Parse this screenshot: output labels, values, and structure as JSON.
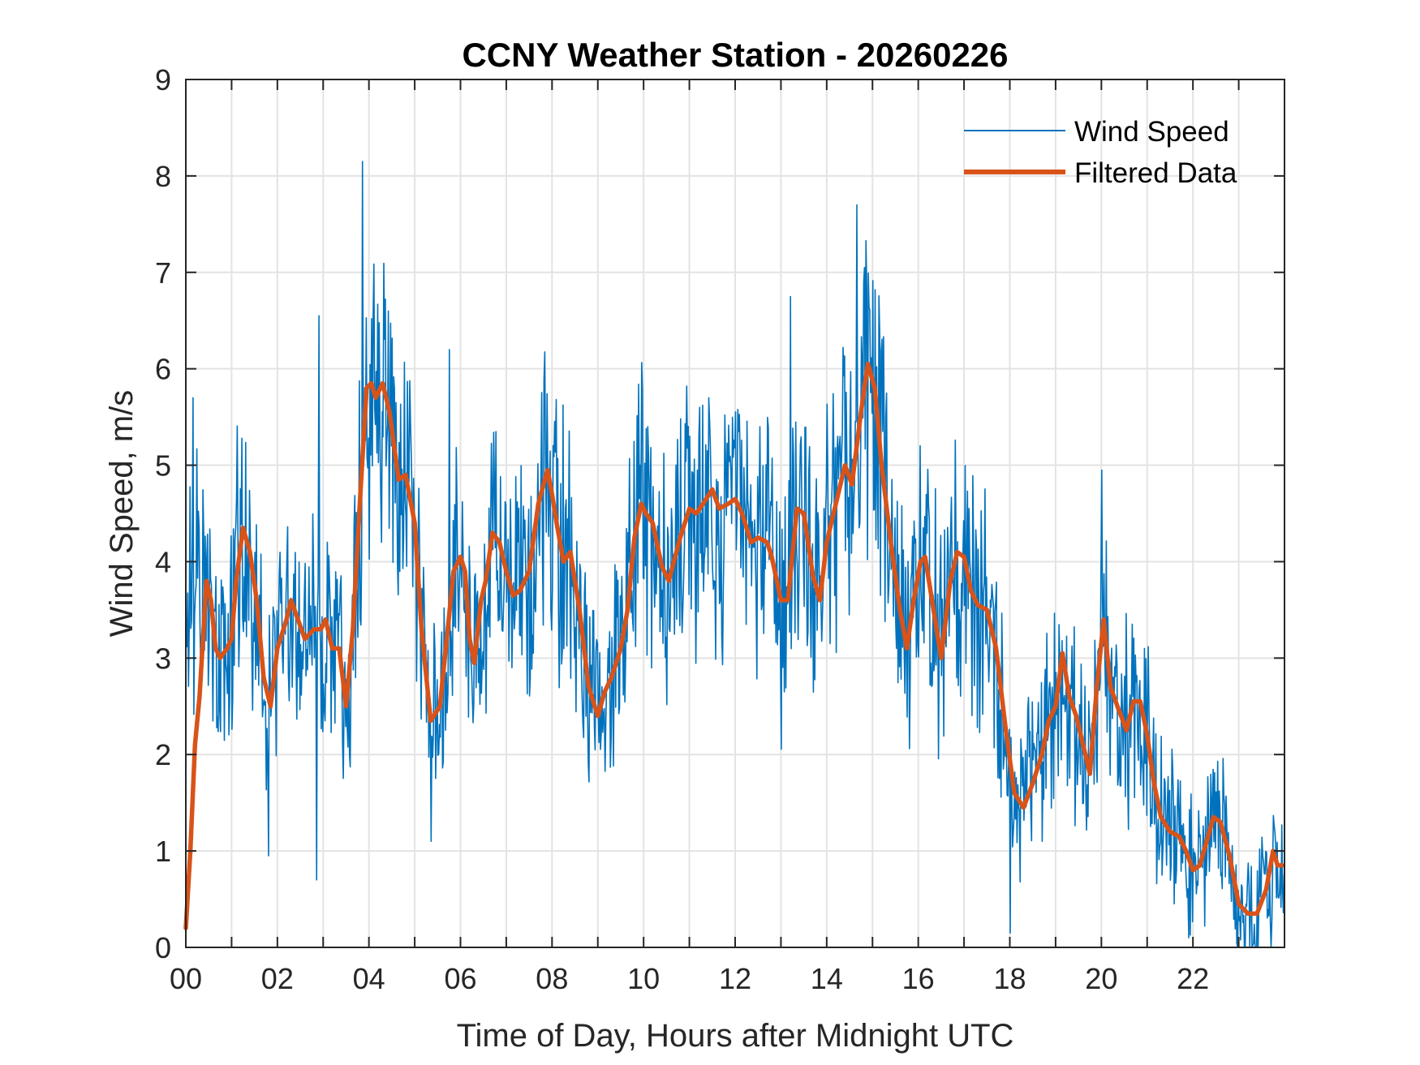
{
  "chart_data": {
    "type": "line",
    "title": "CCNY Weather Station - 20260226",
    "xlabel": "Time of Day, Hours after Midnight UTC",
    "ylabel": "Wind Speed, m/s",
    "xlim": [
      0,
      24
    ],
    "ylim": [
      0,
      9
    ],
    "grid": true,
    "x_ticks": [
      0,
      2,
      4,
      6,
      8,
      10,
      12,
      14,
      16,
      18,
      20,
      22
    ],
    "x_tick_labels": [
      "00",
      "02",
      "04",
      "06",
      "08",
      "10",
      "12",
      "14",
      "16",
      "18",
      "20",
      "22"
    ],
    "x_minor_grid_step_hours": 1,
    "y_ticks": [
      0,
      1,
      2,
      3,
      4,
      5,
      6,
      7,
      8,
      9
    ],
    "y_tick_labels": [
      "0",
      "1",
      "2",
      "3",
      "4",
      "5",
      "6",
      "7",
      "8",
      "9"
    ],
    "legend": {
      "position": "top-right",
      "entries": [
        "Wind Speed",
        "Filtered Data"
      ]
    },
    "colors": {
      "wind_speed": "#0072BD",
      "filtered": "#D95319",
      "grid": "#e3e3e3",
      "axis": "#262626"
    },
    "series": [
      {
        "name": "Wind Speed",
        "style": "thin-line",
        "note": "raw high-frequency samples (~1-min); envelope approximated around filtered curve",
        "notable_peaks": [
          {
            "x": 3.85,
            "y": 8.15
          },
          {
            "x": 14.65,
            "y": 7.7
          },
          {
            "x": 13.2,
            "y": 6.75
          },
          {
            "x": 2.9,
            "y": 6.55
          },
          {
            "x": 5.75,
            "y": 6.2
          },
          {
            "x": 0.15,
            "y": 5.7
          },
          {
            "x": 20.0,
            "y": 4.95
          }
        ],
        "notable_troughs": [
          {
            "x": 2.85,
            "y": 0.7
          },
          {
            "x": 1.8,
            "y": 0.95
          },
          {
            "x": 5.35,
            "y": 1.1
          },
          {
            "x": 18.0,
            "y": 0.15
          },
          {
            "x": 21.9,
            "y": 0.1
          },
          {
            "x": 23.7,
            "y": 0.0
          }
        ]
      },
      {
        "name": "Filtered Data",
        "style": "thick-line",
        "x": [
          0.0,
          0.1,
          0.2,
          0.3,
          0.45,
          0.55,
          0.65,
          0.75,
          0.9,
          1.0,
          1.1,
          1.25,
          1.4,
          1.55,
          1.7,
          1.85,
          2.0,
          2.2,
          2.3,
          2.45,
          2.6,
          2.8,
          2.95,
          3.05,
          3.2,
          3.35,
          3.5,
          3.65,
          3.8,
          3.95,
          4.05,
          4.15,
          4.3,
          4.45,
          4.65,
          4.8,
          5.0,
          5.15,
          5.35,
          5.55,
          5.7,
          5.85,
          6.0,
          6.1,
          6.2,
          6.3,
          6.45,
          6.55,
          6.7,
          6.85,
          7.0,
          7.15,
          7.3,
          7.5,
          7.7,
          7.9,
          8.0,
          8.1,
          8.25,
          8.4,
          8.6,
          8.8,
          9.0,
          9.15,
          9.3,
          9.5,
          9.65,
          9.8,
          9.95,
          10.05,
          10.2,
          10.4,
          10.55,
          10.8,
          11.0,
          11.15,
          11.3,
          11.5,
          11.65,
          11.85,
          12.0,
          12.15,
          12.35,
          12.5,
          12.7,
          12.8,
          13.0,
          13.15,
          13.35,
          13.5,
          13.7,
          13.85,
          14.0,
          14.2,
          14.4,
          14.55,
          14.75,
          14.9,
          15.05,
          15.2,
          15.4,
          15.6,
          15.75,
          15.9,
          16.05,
          16.15,
          16.3,
          16.5,
          16.7,
          16.85,
          17.0,
          17.15,
          17.3,
          17.5,
          17.7,
          17.9,
          18.1,
          18.3,
          18.5,
          18.7,
          18.85,
          19.0,
          19.15,
          19.3,
          19.45,
          19.6,
          19.75,
          19.9,
          20.05,
          20.2,
          20.35,
          20.55,
          20.7,
          20.85,
          21.0,
          21.15,
          21.3,
          21.5,
          21.7,
          21.85,
          22.0,
          22.15,
          22.3,
          22.45,
          22.6,
          22.8,
          23.0,
          23.2,
          23.4,
          23.6,
          23.75,
          23.85,
          23.95
        ],
        "y": [
          0.2,
          1.0,
          2.1,
          2.6,
          3.8,
          3.6,
          3.1,
          3.0,
          3.1,
          3.2,
          3.8,
          4.35,
          4.1,
          3.6,
          2.8,
          2.5,
          3.1,
          3.4,
          3.6,
          3.4,
          3.2,
          3.3,
          3.3,
          3.4,
          3.1,
          3.1,
          2.5,
          3.3,
          4.6,
          5.8,
          5.85,
          5.7,
          5.85,
          5.55,
          4.85,
          4.9,
          4.4,
          3.3,
          2.35,
          2.5,
          3.2,
          3.9,
          4.05,
          3.9,
          3.2,
          2.95,
          3.6,
          3.8,
          4.3,
          4.2,
          3.9,
          3.65,
          3.7,
          3.9,
          4.6,
          4.95,
          4.7,
          4.4,
          4.0,
          4.1,
          3.5,
          2.7,
          2.4,
          2.65,
          2.8,
          3.1,
          3.5,
          4.25,
          4.6,
          4.5,
          4.4,
          3.95,
          3.8,
          4.25,
          4.55,
          4.5,
          4.6,
          4.75,
          4.55,
          4.6,
          4.65,
          4.5,
          4.2,
          4.25,
          4.2,
          4.05,
          3.6,
          3.6,
          4.55,
          4.5,
          3.85,
          3.6,
          4.2,
          4.6,
          5.0,
          4.8,
          5.55,
          6.05,
          5.8,
          5.0,
          4.2,
          3.5,
          3.1,
          3.6,
          4.0,
          4.05,
          3.6,
          3.0,
          3.8,
          4.1,
          4.05,
          3.7,
          3.55,
          3.5,
          3.1,
          2.3,
          1.6,
          1.45,
          1.7,
          2.0,
          2.35,
          2.5,
          3.05,
          2.6,
          2.4,
          2.1,
          1.8,
          2.7,
          3.4,
          2.7,
          2.5,
          2.25,
          2.55,
          2.55,
          2.2,
          1.7,
          1.35,
          1.2,
          1.15,
          1.0,
          0.8,
          0.85,
          1.1,
          1.35,
          1.3,
          0.95,
          0.45,
          0.35,
          0.35,
          0.6,
          1.0,
          0.85,
          0.85
        ]
      }
    ]
  }
}
